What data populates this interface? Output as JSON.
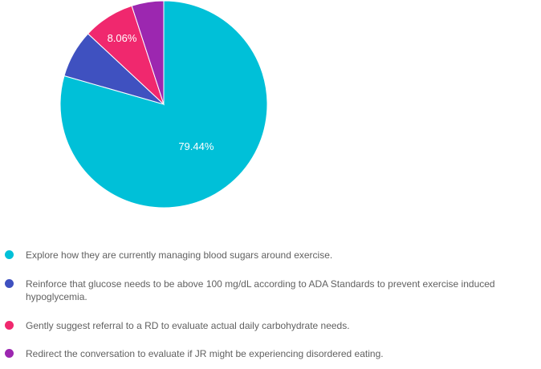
{
  "chart_data": {
    "type": "pie",
    "title": "",
    "slices": [
      {
        "label": "Explore how they are currently managing blood sugars around exercise.",
        "value": 79.44,
        "color": "#00c0d8",
        "data_label": "79.44%"
      },
      {
        "label": "Reinforce that glucose needs to be above 100 mg/dL according to ADA Standards to prevent exercise induced hypoglycemia.",
        "value": 7.5,
        "color": "#3f51c0",
        "data_label": ""
      },
      {
        "label": "Gently suggest referral to a RD to evaluate actual daily carbohydrate needs.",
        "value": 8.06,
        "color": "#f0286e",
        "data_label": "8.06%"
      },
      {
        "label": "Redirect the conversation to evaluate if JR might be experiencing disordered eating.",
        "value": 5.0,
        "color": "#9c27b0",
        "data_label": ""
      }
    ],
    "legend_position": "bottom"
  }
}
